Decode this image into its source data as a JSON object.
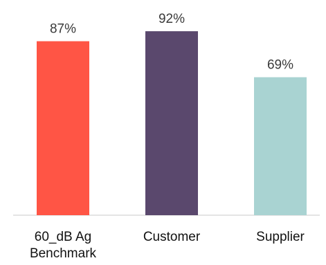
{
  "chart_data": {
    "type": "bar",
    "categories": [
      [
        "60_dB Ag",
        "Benchmark"
      ],
      [
        "Customer"
      ],
      [
        "Supplier"
      ]
    ],
    "values": [
      87,
      92,
      69
    ],
    "value_labels": [
      "87%",
      "92%",
      "69%"
    ],
    "unit": "%",
    "colors": [
      "#ff5545",
      "#5a486d",
      "#a9d3d2"
    ],
    "ylim": [
      0,
      100
    ],
    "grid": false,
    "legend": "none",
    "title": "",
    "xlabel": "",
    "ylabel": ""
  }
}
